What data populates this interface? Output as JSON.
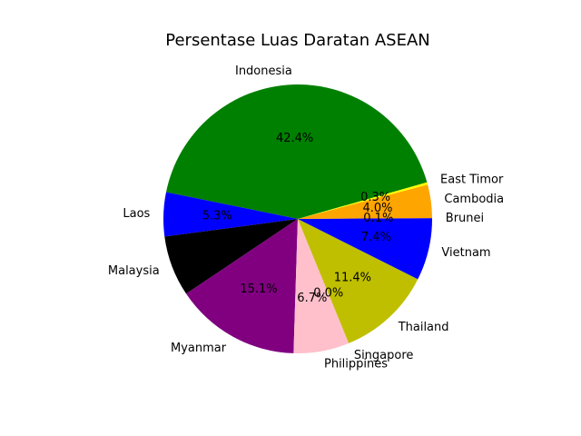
{
  "chart_data": {
    "type": "pie",
    "title": "Persentase Luas Daratan ASEAN",
    "start_angle_deg": 0,
    "direction": "counterclockwise",
    "slices": [
      {
        "label": "Brunei",
        "value": 0.1,
        "pct_label": "0.1%",
        "color": "#0000ff"
      },
      {
        "label": "Cambodia",
        "value": 4.0,
        "pct_label": "4.0%",
        "color": "#ffa500"
      },
      {
        "label": "East Timor",
        "value": 0.3,
        "pct_label": "0.3%",
        "color": "#ffff00"
      },
      {
        "label": "Indonesia",
        "value": 42.4,
        "pct_label": "42.4%",
        "color": "#008000"
      },
      {
        "label": "Laos",
        "value": 5.3,
        "pct_label": "5.3%",
        "color": "#0000ff"
      },
      {
        "label": "Malaysia",
        "value": 7.3,
        "pct_label": "",
        "color": "#000000"
      },
      {
        "label": "Myanmar",
        "value": 15.1,
        "pct_label": "15.1%",
        "color": "#800080"
      },
      {
        "label": "Philippines",
        "value": 6.7,
        "pct_label": "6.7%",
        "color": "#ffc0cb"
      },
      {
        "label": "Singapore",
        "value": 0.0,
        "pct_label": "0.0%",
        "color": "#ffffff"
      },
      {
        "label": "Thailand",
        "value": 11.4,
        "pct_label": "11.4%",
        "color": "#bfbf00"
      },
      {
        "label": "Vietnam",
        "value": 7.4,
        "pct_label": "7.4%",
        "color": "#0000ff"
      }
    ]
  }
}
